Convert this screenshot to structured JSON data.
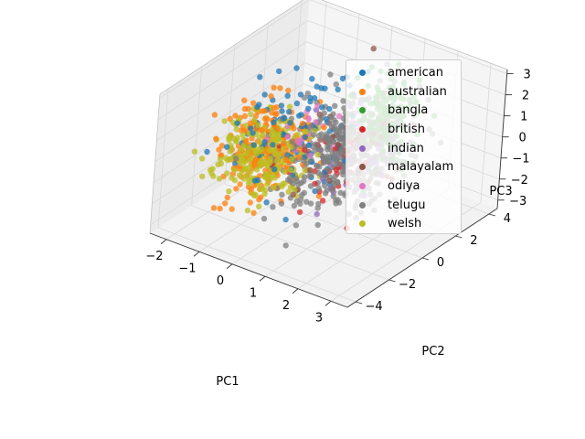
{
  "chart_data": {
    "type": "scatter",
    "projection": "3d",
    "title": "",
    "xlabel": "PC1",
    "ylabel": "PC2",
    "zlabel": "PC3",
    "xlim": [
      -2.5,
      3.5
    ],
    "ylim": [
      -4.5,
      4.5
    ],
    "zlim": [
      -3.4,
      3.2
    ],
    "xticks": [
      "−2",
      "−1",
      "0",
      "1",
      "2",
      "3"
    ],
    "yticks": [
      "−4",
      "−2",
      "0",
      "2",
      "4"
    ],
    "zticks": [
      "−3",
      "−2",
      "−1",
      "0",
      "1",
      "2",
      "3"
    ],
    "grid": true,
    "legend_position": "upper-right",
    "series": [
      {
        "name": "american",
        "color": "#1f77b4",
        "center": [
          -0.3,
          -0.4,
          0.6
        ],
        "spread": [
          0.75,
          1.7,
          1.35
        ],
        "count": 110
      },
      {
        "name": "australian",
        "color": "#ff7f0e",
        "center": [
          -1.0,
          -0.8,
          -0.5
        ],
        "spread": [
          0.55,
          0.7,
          1.05
        ],
        "count": 210
      },
      {
        "name": "bangla",
        "color": "#2ca02c",
        "center": [
          0.9,
          2.6,
          0.3
        ],
        "spread": [
          0.35,
          0.6,
          0.9
        ],
        "count": 170
      },
      {
        "name": "british",
        "color": "#d62728",
        "center": [
          0.6,
          0.3,
          -0.9
        ],
        "spread": [
          0.5,
          0.9,
          0.7
        ],
        "count": 35
      },
      {
        "name": "indian",
        "color": "#9467bd",
        "center": [
          0.9,
          0.8,
          -0.8
        ],
        "spread": [
          0.7,
          1.2,
          0.8
        ],
        "count": 45
      },
      {
        "name": "malayalam",
        "color": "#8c564b",
        "center": [
          0.9,
          0.9,
          0.0
        ],
        "spread": [
          0.6,
          1.3,
          0.9
        ],
        "count": 45
      },
      {
        "name": "odiya",
        "color": "#e377c2",
        "center": [
          0.2,
          0.2,
          0.6
        ],
        "spread": [
          0.5,
          1.0,
          0.7
        ],
        "count": 25
      },
      {
        "name": "telugu",
        "color": "#7f7f7f",
        "center": [
          0.7,
          0.6,
          -0.2
        ],
        "spread": [
          0.75,
          1.5,
          1.05
        ],
        "count": 420
      },
      {
        "name": "welsh",
        "color": "#bcbd22",
        "center": [
          -0.8,
          -1.3,
          -0.3
        ],
        "spread": [
          0.6,
          0.9,
          0.8
        ],
        "count": 260
      }
    ]
  }
}
